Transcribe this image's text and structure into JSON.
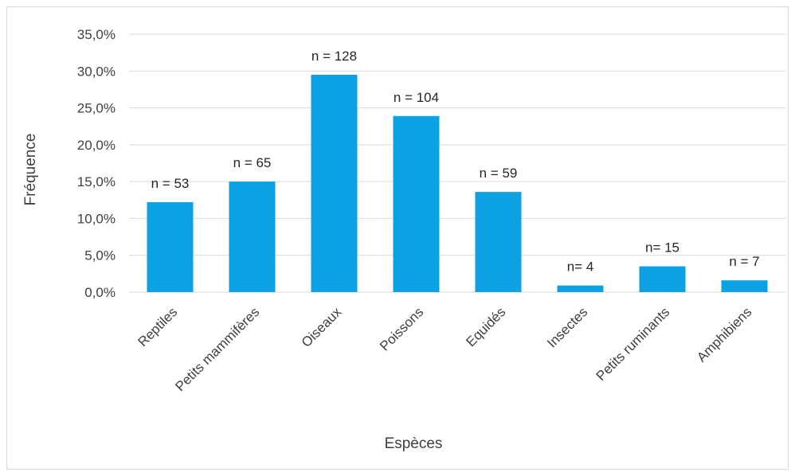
{
  "chart_data": {
    "type": "bar",
    "title": "",
    "xlabel": "Espèces",
    "ylabel": "Fréquence",
    "categories": [
      "Reptiles",
      "Petits mammifères",
      "Oiseaux",
      "Poissons",
      "Equidés",
      "Insectes",
      "Petits ruminants",
      "Amphibiens"
    ],
    "values": [
      12.2,
      15.0,
      29.5,
      23.9,
      13.6,
      0.9,
      3.5,
      1.6
    ],
    "data_labels": [
      "n = 53",
      "n = 65",
      "n = 128",
      "n = 104",
      "n = 59",
      "n= 4",
      "n= 15",
      "n = 7"
    ],
    "ylim": [
      0,
      35
    ],
    "yticks": [
      0,
      5,
      10,
      15,
      20,
      25,
      30,
      35
    ],
    "ytick_labels": [
      "0,0%",
      "5,0%",
      "10,0%",
      "15,0%",
      "20,0%",
      "25,0%",
      "30,0%",
      "35,0%"
    ],
    "grid": true,
    "legend": "none",
    "bar_color": "#0ba1e2",
    "grid_color": "#d9d9d9",
    "text_color": "#404040"
  }
}
